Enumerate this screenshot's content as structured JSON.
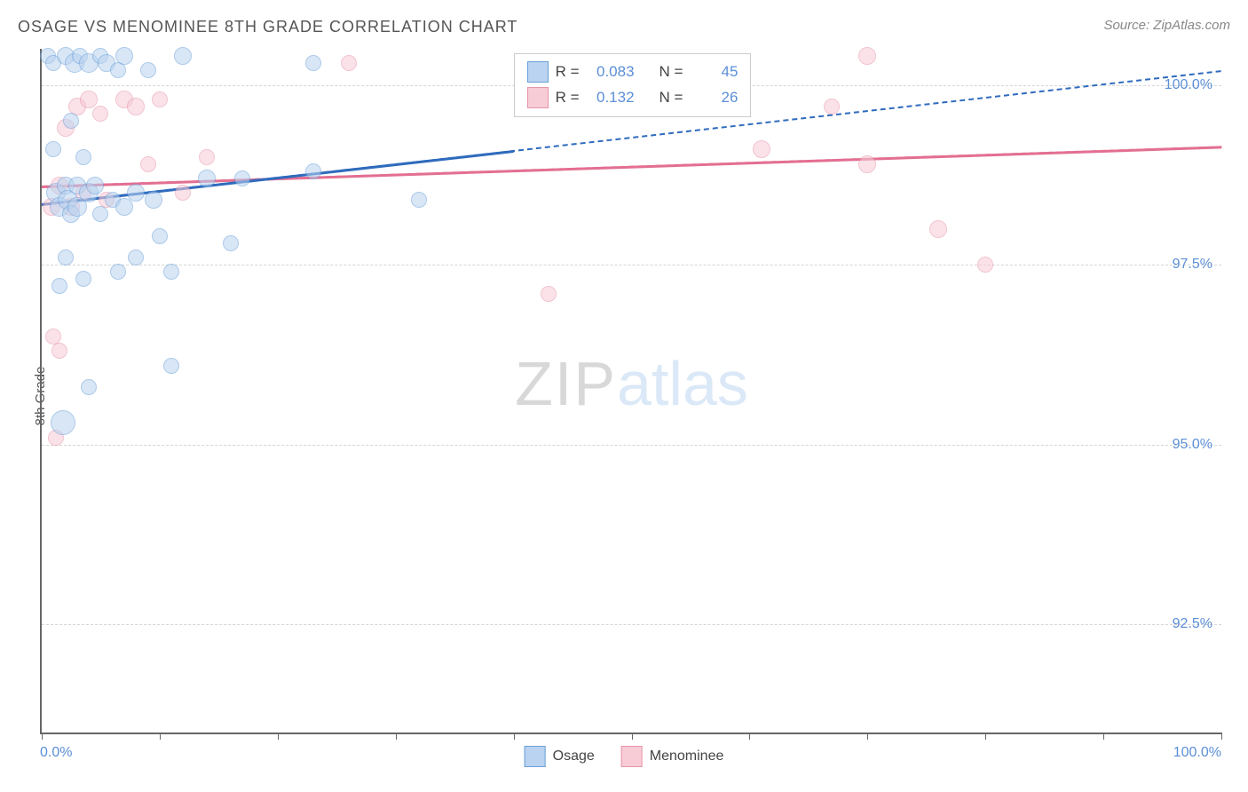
{
  "title": "OSAGE VS MENOMINEE 8TH GRADE CORRELATION CHART",
  "source": "Source: ZipAtlas.com",
  "watermark": {
    "zip": "ZIP",
    "atlas": "atlas"
  },
  "y_axis": {
    "label": "8th Grade",
    "min": 91.0,
    "max": 100.5,
    "ticks": [
      {
        "v": 92.5,
        "label": "92.5%"
      },
      {
        "v": 95.0,
        "label": "95.0%"
      },
      {
        "v": 97.5,
        "label": "97.5%"
      },
      {
        "v": 100.0,
        "label": "100.0%"
      }
    ]
  },
  "x_axis": {
    "min": 0.0,
    "max": 100.0,
    "left_label": "0.0%",
    "right_label": "100.0%",
    "tick_positions": [
      0,
      10,
      20,
      30,
      40,
      50,
      60,
      70,
      80,
      90,
      100
    ]
  },
  "series": {
    "osage": {
      "label": "Osage",
      "fill": "#b9d3f0",
      "stroke": "#6a9fd8",
      "fill_opacity": 0.55,
      "r_value": "0.083",
      "n_value": "45",
      "trend": {
        "color": "#2f6bbd",
        "y_at_x0": 98.35,
        "y_at_x100": 100.2,
        "solid_until_x": 40
      },
      "points": [
        {
          "x": 0.5,
          "y": 100.4,
          "r": 8
        },
        {
          "x": 1.0,
          "y": 100.3,
          "r": 8
        },
        {
          "x": 1.0,
          "y": 99.1,
          "r": 8
        },
        {
          "x": 1.2,
          "y": 98.5,
          "r": 10
        },
        {
          "x": 1.5,
          "y": 98.3,
          "r": 10
        },
        {
          "x": 1.5,
          "y": 97.2,
          "r": 8
        },
        {
          "x": 1.8,
          "y": 95.3,
          "r": 13
        },
        {
          "x": 2.0,
          "y": 98.6,
          "r": 9
        },
        {
          "x": 2.0,
          "y": 100.4,
          "r": 9
        },
        {
          "x": 2.0,
          "y": 97.6,
          "r": 8
        },
        {
          "x": 2.2,
          "y": 98.4,
          "r": 10
        },
        {
          "x": 2.5,
          "y": 99.5,
          "r": 8
        },
        {
          "x": 2.5,
          "y": 98.2,
          "r": 9
        },
        {
          "x": 2.8,
          "y": 100.3,
          "r": 10
        },
        {
          "x": 3.0,
          "y": 98.6,
          "r": 9
        },
        {
          "x": 3.0,
          "y": 98.3,
          "r": 10
        },
        {
          "x": 3.2,
          "y": 100.4,
          "r": 8
        },
        {
          "x": 3.5,
          "y": 99.0,
          "r": 8
        },
        {
          "x": 3.5,
          "y": 97.3,
          "r": 8
        },
        {
          "x": 4.0,
          "y": 100.3,
          "r": 10
        },
        {
          "x": 4.0,
          "y": 98.5,
          "r": 10
        },
        {
          "x": 4.0,
          "y": 95.8,
          "r": 8
        },
        {
          "x": 4.5,
          "y": 98.6,
          "r": 9
        },
        {
          "x": 5.0,
          "y": 100.4,
          "r": 8
        },
        {
          "x": 5.0,
          "y": 98.2,
          "r": 8
        },
        {
          "x": 5.5,
          "y": 100.3,
          "r": 9
        },
        {
          "x": 6.0,
          "y": 98.4,
          "r": 8
        },
        {
          "x": 6.5,
          "y": 97.4,
          "r": 8
        },
        {
          "x": 6.5,
          "y": 100.2,
          "r": 8
        },
        {
          "x": 7.0,
          "y": 98.3,
          "r": 9
        },
        {
          "x": 7.0,
          "y": 100.4,
          "r": 9
        },
        {
          "x": 8.0,
          "y": 98.5,
          "r": 9
        },
        {
          "x": 8.0,
          "y": 97.6,
          "r": 8
        },
        {
          "x": 9.0,
          "y": 100.2,
          "r": 8
        },
        {
          "x": 9.5,
          "y": 98.4,
          "r": 9
        },
        {
          "x": 10.0,
          "y": 97.9,
          "r": 8
        },
        {
          "x": 11.0,
          "y": 96.1,
          "r": 8
        },
        {
          "x": 11.0,
          "y": 97.4,
          "r": 8
        },
        {
          "x": 12.0,
          "y": 100.4,
          "r": 9
        },
        {
          "x": 14.0,
          "y": 98.7,
          "r": 9
        },
        {
          "x": 16.0,
          "y": 97.8,
          "r": 8
        },
        {
          "x": 17.0,
          "y": 98.7,
          "r": 8
        },
        {
          "x": 23.0,
          "y": 100.3,
          "r": 8
        },
        {
          "x": 23.0,
          "y": 98.8,
          "r": 8
        },
        {
          "x": 32.0,
          "y": 98.4,
          "r": 8
        }
      ]
    },
    "menominee": {
      "label": "Menominee",
      "fill": "#f7ccd6",
      "stroke": "#e794aa",
      "fill_opacity": 0.55,
      "r_value": "0.132",
      "n_value": "26",
      "trend": {
        "color": "#e36f92",
        "y_at_x0": 98.6,
        "y_at_x100": 99.15,
        "solid_until_x": 100
      },
      "points": [
        {
          "x": 0.8,
          "y": 98.3,
          "r": 9
        },
        {
          "x": 1.0,
          "y": 96.5,
          "r": 8
        },
        {
          "x": 1.2,
          "y": 95.1,
          "r": 8
        },
        {
          "x": 1.5,
          "y": 98.6,
          "r": 9
        },
        {
          "x": 1.5,
          "y": 96.3,
          "r": 8
        },
        {
          "x": 2.0,
          "y": 99.4,
          "r": 9
        },
        {
          "x": 2.5,
          "y": 98.3,
          "r": 9
        },
        {
          "x": 3.0,
          "y": 99.7,
          "r": 9
        },
        {
          "x": 3.5,
          "y": 98.5,
          "r": 8
        },
        {
          "x": 4.0,
          "y": 99.8,
          "r": 9
        },
        {
          "x": 5.0,
          "y": 99.6,
          "r": 8
        },
        {
          "x": 5.5,
          "y": 98.4,
          "r": 8
        },
        {
          "x": 7.0,
          "y": 99.8,
          "r": 9
        },
        {
          "x": 8.0,
          "y": 99.7,
          "r": 9
        },
        {
          "x": 9.0,
          "y": 98.9,
          "r": 8
        },
        {
          "x": 10.0,
          "y": 99.8,
          "r": 8
        },
        {
          "x": 12.0,
          "y": 98.5,
          "r": 8
        },
        {
          "x": 14.0,
          "y": 99.0,
          "r": 8
        },
        {
          "x": 26.0,
          "y": 100.3,
          "r": 8
        },
        {
          "x": 43.0,
          "y": 97.1,
          "r": 8
        },
        {
          "x": 61.0,
          "y": 99.1,
          "r": 9
        },
        {
          "x": 67.0,
          "y": 99.7,
          "r": 8
        },
        {
          "x": 70.0,
          "y": 98.9,
          "r": 9
        },
        {
          "x": 70.0,
          "y": 100.4,
          "r": 9
        },
        {
          "x": 76.0,
          "y": 98.0,
          "r": 9
        },
        {
          "x": 80.0,
          "y": 97.5,
          "r": 8
        }
      ]
    }
  },
  "legend_labels": {
    "R": "R =",
    "N": "N ="
  }
}
